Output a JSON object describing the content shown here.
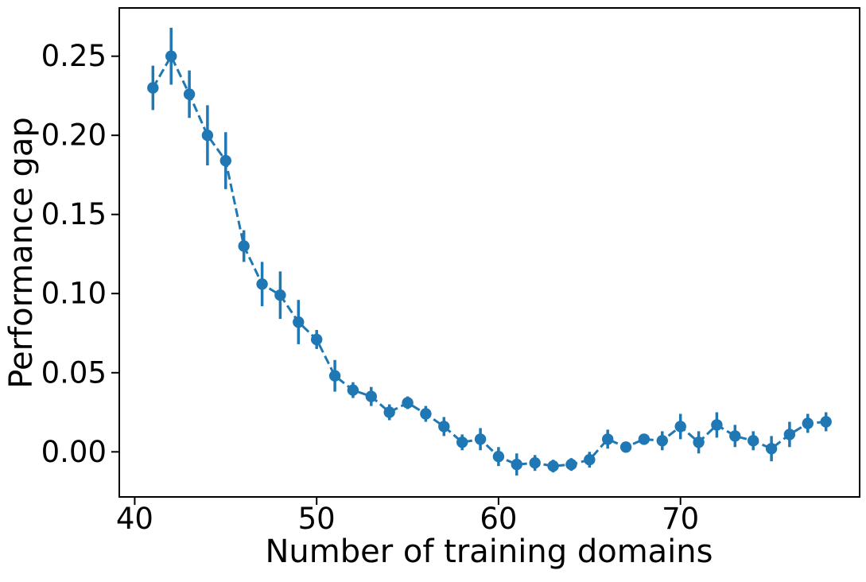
{
  "chart_data": {
    "type": "line",
    "title": "",
    "xlabel": "Number of training domains",
    "ylabel": "Performance gap",
    "series": [
      {
        "name": "performance-gap",
        "x": [
          41,
          42,
          43,
          44,
          45,
          46,
          47,
          48,
          49,
          50,
          51,
          52,
          53,
          54,
          55,
          56,
          57,
          58,
          59,
          60,
          61,
          62,
          63,
          64,
          65,
          66,
          67,
          68,
          69,
          70,
          71,
          72,
          73,
          74,
          75,
          76,
          77,
          78
        ],
        "y": [
          0.23,
          0.25,
          0.226,
          0.2,
          0.184,
          0.13,
          0.106,
          0.099,
          0.082,
          0.071,
          0.048,
          0.039,
          0.035,
          0.025,
          0.031,
          0.024,
          0.016,
          0.006,
          0.008,
          -0.003,
          -0.008,
          -0.007,
          -0.009,
          -0.008,
          -0.005,
          0.008,
          0.003,
          0.008,
          0.007,
          0.016,
          0.006,
          0.017,
          0.01,
          0.007,
          0.002,
          0.011,
          0.018,
          0.019
        ],
        "yerr": [
          0.014,
          0.018,
          0.015,
          0.019,
          0.018,
          0.01,
          0.014,
          0.015,
          0.014,
          0.006,
          0.01,
          0.005,
          0.006,
          0.005,
          0.004,
          0.005,
          0.006,
          0.005,
          0.007,
          0.006,
          0.007,
          0.005,
          0.004,
          0.004,
          0.005,
          0.006,
          0.001,
          0.003,
          0.006,
          0.008,
          0.007,
          0.008,
          0.007,
          0.006,
          0.008,
          0.008,
          0.006,
          0.006
        ]
      }
    ],
    "xlim": [
      39.15,
      79.85
    ],
    "ylim": [
      -0.0285,
      0.2805
    ],
    "xticks": [
      40,
      50,
      60,
      70
    ],
    "xtick_labels": [
      "40",
      "50",
      "60",
      "70"
    ],
    "yticks": [
      0.0,
      0.05,
      0.1,
      0.15,
      0.2,
      0.25
    ],
    "ytick_labels": [
      "0.00",
      "0.05",
      "0.10",
      "0.15",
      "0.20",
      "0.25"
    ],
    "grid": false,
    "legend": null,
    "line_color": "#1f77b4",
    "line_style": "dashed",
    "marker": "circle",
    "error_bars": "vertical-capless"
  }
}
